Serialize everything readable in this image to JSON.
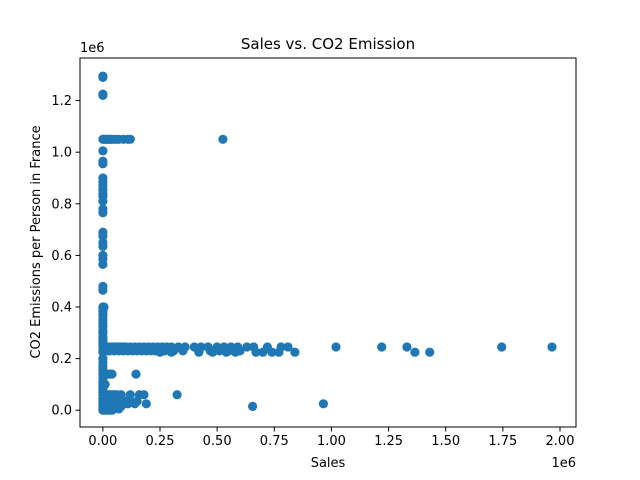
{
  "chart_data": {
    "type": "scatter",
    "title": "Sales vs. CO2 Emission",
    "xlabel": "Sales",
    "ylabel": "CO2 Emissions per Person in France",
    "x_offset_label": "1e6",
    "y_offset_label": "1e6",
    "xlim": [
      -0.1,
      2.07
    ],
    "ylim": [
      -0.065,
      1.365
    ],
    "x_ticks": [
      0.0,
      0.25,
      0.5,
      0.75,
      1.0,
      1.25,
      1.5,
      1.75,
      2.0
    ],
    "x_tick_labels": [
      "0.00",
      "0.25",
      "0.50",
      "0.75",
      "1.00",
      "1.25",
      "1.50",
      "1.75",
      "2.00"
    ],
    "y_ticks": [
      0.0,
      0.2,
      0.4,
      0.6,
      0.8,
      1.0,
      1.2
    ],
    "y_tick_labels": [
      "0.0",
      "0.2",
      "0.4",
      "0.6",
      "0.8",
      "1.0",
      "1.2"
    ],
    "grid": false,
    "marker_color": "#1f77b4",
    "points": [
      [
        0.0,
        1.295
      ],
      [
        0.0,
        1.29
      ],
      [
        0.0,
        1.225
      ],
      [
        0.0,
        1.22
      ],
      [
        0.0,
        1.05
      ],
      [
        0.005,
        1.05
      ],
      [
        0.01,
        1.05
      ],
      [
        0.015,
        1.05
      ],
      [
        0.02,
        1.05
      ],
      [
        0.025,
        1.05
      ],
      [
        0.03,
        1.05
      ],
      [
        0.035,
        1.05
      ],
      [
        0.04,
        1.05
      ],
      [
        0.05,
        1.05
      ],
      [
        0.06,
        1.05
      ],
      [
        0.07,
        1.05
      ],
      [
        0.09,
        1.05
      ],
      [
        0.11,
        1.05
      ],
      [
        0.12,
        1.05
      ],
      [
        0.525,
        1.05
      ],
      [
        0.0,
        1.005
      ],
      [
        0.0,
        0.965
      ],
      [
        0.0,
        0.955
      ],
      [
        0.0,
        0.9
      ],
      [
        0.0,
        0.885
      ],
      [
        0.0,
        0.87
      ],
      [
        0.0,
        0.855
      ],
      [
        0.0,
        0.84
      ],
      [
        0.0,
        0.83
      ],
      [
        0.0,
        0.81
      ],
      [
        0.0,
        0.78
      ],
      [
        0.0,
        0.765
      ],
      [
        0.0,
        0.69
      ],
      [
        0.0,
        0.675
      ],
      [
        0.0,
        0.65
      ],
      [
        0.0,
        0.635
      ],
      [
        0.0,
        0.6
      ],
      [
        0.0,
        0.585
      ],
      [
        0.0,
        0.565
      ],
      [
        0.0,
        0.48
      ],
      [
        0.0,
        0.465
      ],
      [
        0.0,
        0.4
      ],
      [
        0.005,
        0.4
      ],
      [
        0.0,
        0.395
      ],
      [
        0.0,
        0.385
      ],
      [
        0.0,
        0.375
      ],
      [
        0.0,
        0.365
      ],
      [
        0.0,
        0.35
      ],
      [
        0.0,
        0.335
      ],
      [
        0.0,
        0.325
      ],
      [
        0.0,
        0.31
      ],
      [
        0.0,
        0.3
      ],
      [
        0.0,
        0.285
      ],
      [
        0.0,
        0.275
      ],
      [
        0.0,
        0.265
      ],
      [
        0.0,
        0.255
      ],
      [
        0.0,
        0.245
      ],
      [
        0.01,
        0.245
      ],
      [
        0.02,
        0.245
      ],
      [
        0.03,
        0.245
      ],
      [
        0.04,
        0.245
      ],
      [
        0.05,
        0.245
      ],
      [
        0.06,
        0.245
      ],
      [
        0.07,
        0.245
      ],
      [
        0.08,
        0.245
      ],
      [
        0.09,
        0.245
      ],
      [
        0.1,
        0.245
      ],
      [
        0.12,
        0.245
      ],
      [
        0.14,
        0.245
      ],
      [
        0.16,
        0.245
      ],
      [
        0.18,
        0.245
      ],
      [
        0.2,
        0.245
      ],
      [
        0.22,
        0.245
      ],
      [
        0.24,
        0.245
      ],
      [
        0.26,
        0.245
      ],
      [
        0.28,
        0.245
      ],
      [
        0.3,
        0.245
      ],
      [
        0.33,
        0.245
      ],
      [
        0.36,
        0.245
      ],
      [
        0.4,
        0.245
      ],
      [
        0.43,
        0.245
      ],
      [
        0.46,
        0.245
      ],
      [
        0.5,
        0.245
      ],
      [
        0.53,
        0.245
      ],
      [
        0.56,
        0.245
      ],
      [
        0.59,
        0.245
      ],
      [
        0.63,
        0.245
      ],
      [
        0.66,
        0.245
      ],
      [
        0.72,
        0.245
      ],
      [
        0.78,
        0.245
      ],
      [
        0.81,
        0.245
      ],
      [
        1.02,
        0.245
      ],
      [
        1.22,
        0.245
      ],
      [
        1.33,
        0.245
      ],
      [
        1.745,
        0.245
      ],
      [
        1.965,
        0.245
      ],
      [
        0.0,
        0.23
      ],
      [
        0.01,
        0.23
      ],
      [
        0.02,
        0.23
      ],
      [
        0.03,
        0.23
      ],
      [
        0.05,
        0.23
      ],
      [
        0.07,
        0.23
      ],
      [
        0.09,
        0.23
      ],
      [
        0.11,
        0.23
      ],
      [
        0.13,
        0.23
      ],
      [
        0.15,
        0.23
      ],
      [
        0.17,
        0.23
      ],
      [
        0.19,
        0.23
      ],
      [
        0.21,
        0.23
      ],
      [
        0.23,
        0.23
      ],
      [
        0.25,
        0.23
      ],
      [
        0.27,
        0.23
      ],
      [
        0.31,
        0.23
      ],
      [
        0.35,
        0.23
      ],
      [
        0.42,
        0.23
      ],
      [
        0.47,
        0.23
      ],
      [
        0.51,
        0.23
      ],
      [
        0.55,
        0.23
      ],
      [
        0.6,
        0.23
      ],
      [
        0.0,
        0.225
      ],
      [
        0.25,
        0.225
      ],
      [
        0.3,
        0.225
      ],
      [
        0.42,
        0.225
      ],
      [
        0.48,
        0.225
      ],
      [
        0.54,
        0.225
      ],
      [
        0.58,
        0.225
      ],
      [
        0.67,
        0.225
      ],
      [
        0.7,
        0.225
      ],
      [
        0.74,
        0.225
      ],
      [
        0.77,
        0.225
      ],
      [
        0.84,
        0.225
      ],
      [
        1.365,
        0.225
      ],
      [
        1.43,
        0.225
      ],
      [
        0.0,
        0.2
      ],
      [
        0.0,
        0.185
      ],
      [
        0.0,
        0.17
      ],
      [
        0.0,
        0.155
      ],
      [
        0.0,
        0.14
      ],
      [
        0.01,
        0.14
      ],
      [
        0.02,
        0.14
      ],
      [
        0.03,
        0.14
      ],
      [
        0.04,
        0.14
      ],
      [
        0.145,
        0.14
      ],
      [
        0.0,
        0.125
      ],
      [
        0.0,
        0.11
      ],
      [
        0.0,
        0.1
      ],
      [
        0.01,
        0.1
      ],
      [
        0.0,
        0.09
      ],
      [
        0.0,
        0.08
      ],
      [
        0.0,
        0.07
      ],
      [
        0.0,
        0.06
      ],
      [
        0.01,
        0.06
      ],
      [
        0.02,
        0.06
      ],
      [
        0.03,
        0.06
      ],
      [
        0.04,
        0.06
      ],
      [
        0.05,
        0.06
      ],
      [
        0.06,
        0.06
      ],
      [
        0.08,
        0.06
      ],
      [
        0.12,
        0.06
      ],
      [
        0.16,
        0.06
      ],
      [
        0.18,
        0.06
      ],
      [
        0.325,
        0.06
      ],
      [
        0.0,
        0.045
      ],
      [
        0.01,
        0.045
      ],
      [
        0.02,
        0.045
      ],
      [
        0.04,
        0.045
      ],
      [
        0.06,
        0.045
      ],
      [
        0.0,
        0.035
      ],
      [
        0.01,
        0.035
      ],
      [
        0.03,
        0.035
      ],
      [
        0.05,
        0.035
      ],
      [
        0.1,
        0.035
      ],
      [
        0.12,
        0.035
      ],
      [
        0.15,
        0.035
      ],
      [
        0.0,
        0.025
      ],
      [
        0.01,
        0.025
      ],
      [
        0.02,
        0.025
      ],
      [
        0.03,
        0.025
      ],
      [
        0.05,
        0.025
      ],
      [
        0.07,
        0.025
      ],
      [
        0.09,
        0.025
      ],
      [
        0.11,
        0.025
      ],
      [
        0.14,
        0.025
      ],
      [
        0.19,
        0.025
      ],
      [
        0.965,
        0.025
      ],
      [
        0.0,
        0.015
      ],
      [
        0.01,
        0.015
      ],
      [
        0.02,
        0.015
      ],
      [
        0.04,
        0.015
      ],
      [
        0.06,
        0.015
      ],
      [
        0.08,
        0.015
      ],
      [
        0.655,
        0.015
      ],
      [
        0.0,
        0.005
      ],
      [
        0.01,
        0.005
      ],
      [
        0.02,
        0.005
      ],
      [
        0.03,
        0.005
      ],
      [
        0.05,
        0.005
      ],
      [
        0.07,
        0.005
      ],
      [
        0.0,
        0.0
      ],
      [
        0.01,
        0.0
      ],
      [
        0.02,
        0.0
      ],
      [
        0.03,
        0.0
      ],
      [
        0.04,
        0.0
      ]
    ]
  }
}
